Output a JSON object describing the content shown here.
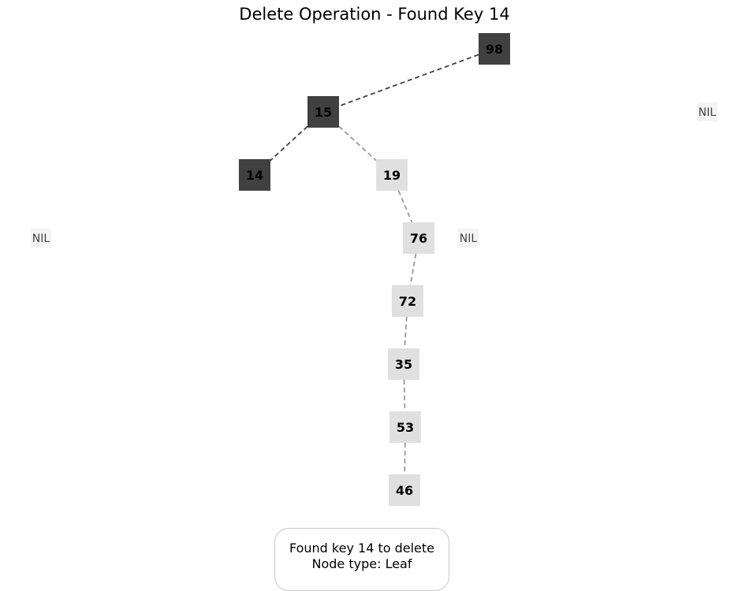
{
  "title": "Delete Operation - Found Key 14",
  "colors": {
    "highlighted_node": "#404040",
    "normal_node": "#e0e0e0",
    "nil_node": "#f4f4f4",
    "highlighted_edge": "#404040",
    "normal_edge": "#999999"
  },
  "nodes": [
    {
      "id": "n98",
      "key": "98",
      "highlighted": true
    },
    {
      "id": "n15",
      "key": "15",
      "highlighted": true
    },
    {
      "id": "n14",
      "key": "14",
      "highlighted": true
    },
    {
      "id": "n19",
      "key": "19",
      "highlighted": false
    },
    {
      "id": "n76",
      "key": "76",
      "highlighted": false
    },
    {
      "id": "n72",
      "key": "72",
      "highlighted": false
    },
    {
      "id": "n35",
      "key": "35",
      "highlighted": false
    },
    {
      "id": "n53",
      "key": "53",
      "highlighted": false
    },
    {
      "id": "n46",
      "key": "46",
      "highlighted": false
    }
  ],
  "nil_nodes": [
    {
      "id": "nil1",
      "label": "NIL"
    },
    {
      "id": "nil2",
      "label": "NIL"
    },
    {
      "id": "nil3",
      "label": "NIL"
    }
  ],
  "edges": [
    {
      "from": "n98",
      "to": "n15",
      "highlighted": true
    },
    {
      "from": "n15",
      "to": "n14",
      "highlighted": true
    },
    {
      "from": "n15",
      "to": "n19",
      "highlighted": false
    },
    {
      "from": "n19",
      "to": "n76",
      "highlighted": false
    },
    {
      "from": "n76",
      "to": "n72",
      "highlighted": false
    },
    {
      "from": "n72",
      "to": "n35",
      "highlighted": false
    },
    {
      "from": "n35",
      "to": "n53",
      "highlighted": false
    },
    {
      "from": "n53",
      "to": "n46",
      "highlighted": false
    }
  ],
  "status": {
    "line1": "Found key 14 to delete",
    "line2": "Node type: Leaf"
  }
}
